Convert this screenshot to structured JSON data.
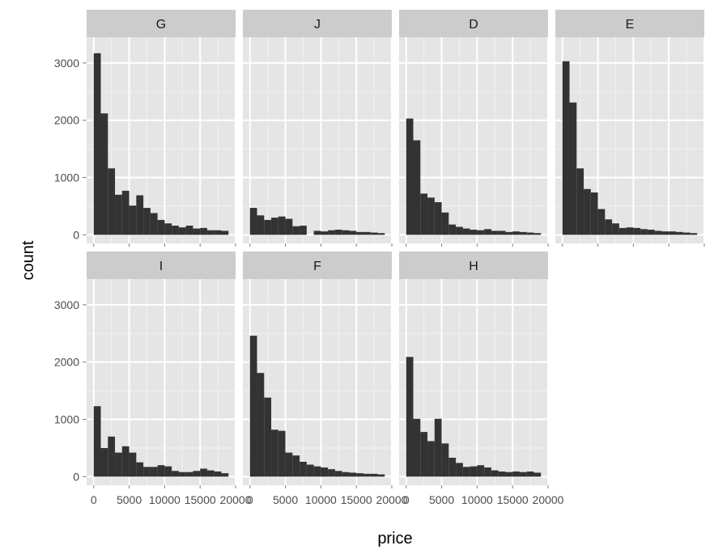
{
  "chart_data": {
    "type": "bar",
    "title": "",
    "xlabel": "price",
    "ylabel": "count",
    "xlim": [
      -1000,
      20000
    ],
    "ylim": [
      -150,
      3450
    ],
    "x_ticks": [
      0,
      5000,
      10000,
      15000,
      20000
    ],
    "x_tick_labels": [
      "0",
      "5000",
      "10000",
      "15000",
      "20000"
    ],
    "y_ticks": [
      0,
      1000,
      2000,
      3000
    ],
    "y_tick_labels": [
      "0",
      "1000",
      "2000",
      "3000"
    ],
    "bin_width": 1000,
    "bin_starts": [
      0,
      1000,
      2000,
      3000,
      4000,
      5000,
      6000,
      7000,
      8000,
      9000,
      10000,
      11000,
      12000,
      13000,
      14000,
      15000,
      16000,
      17000,
      18000
    ],
    "grid": true,
    "facets": [
      {
        "name": "G",
        "values": [
          3170,
          2120,
          1160,
          700,
          770,
          510,
          690,
          470,
          380,
          260,
          200,
          160,
          130,
          160,
          110,
          120,
          80,
          80,
          70
        ]
      },
      {
        "name": "J",
        "values": [
          470,
          340,
          260,
          300,
          320,
          280,
          150,
          160,
          0,
          70,
          60,
          80,
          90,
          80,
          70,
          50,
          50,
          40,
          30
        ]
      },
      {
        "name": "D",
        "values": [
          2030,
          1650,
          720,
          650,
          570,
          390,
          180,
          140,
          110,
          90,
          80,
          100,
          70,
          70,
          50,
          60,
          50,
          40,
          30
        ]
      },
      {
        "name": "E",
        "values": [
          3030,
          2310,
          1160,
          800,
          740,
          450,
          270,
          200,
          120,
          130,
          120,
          100,
          90,
          70,
          60,
          60,
          50,
          40,
          30
        ]
      },
      {
        "name": "I",
        "values": [
          1230,
          500,
          700,
          420,
          530,
          420,
          250,
          170,
          170,
          200,
          180,
          100,
          80,
          80,
          100,
          140,
          110,
          90,
          60
        ]
      },
      {
        "name": "F",
        "values": [
          2460,
          1810,
          1380,
          820,
          800,
          420,
          370,
          260,
          210,
          180,
          160,
          130,
          100,
          80,
          70,
          60,
          50,
          50,
          40
        ]
      },
      {
        "name": "H",
        "values": [
          2090,
          1010,
          780,
          620,
          1010,
          580,
          330,
          240,
          170,
          180,
          200,
          160,
          110,
          90,
          80,
          90,
          80,
          90,
          70
        ]
      }
    ]
  }
}
